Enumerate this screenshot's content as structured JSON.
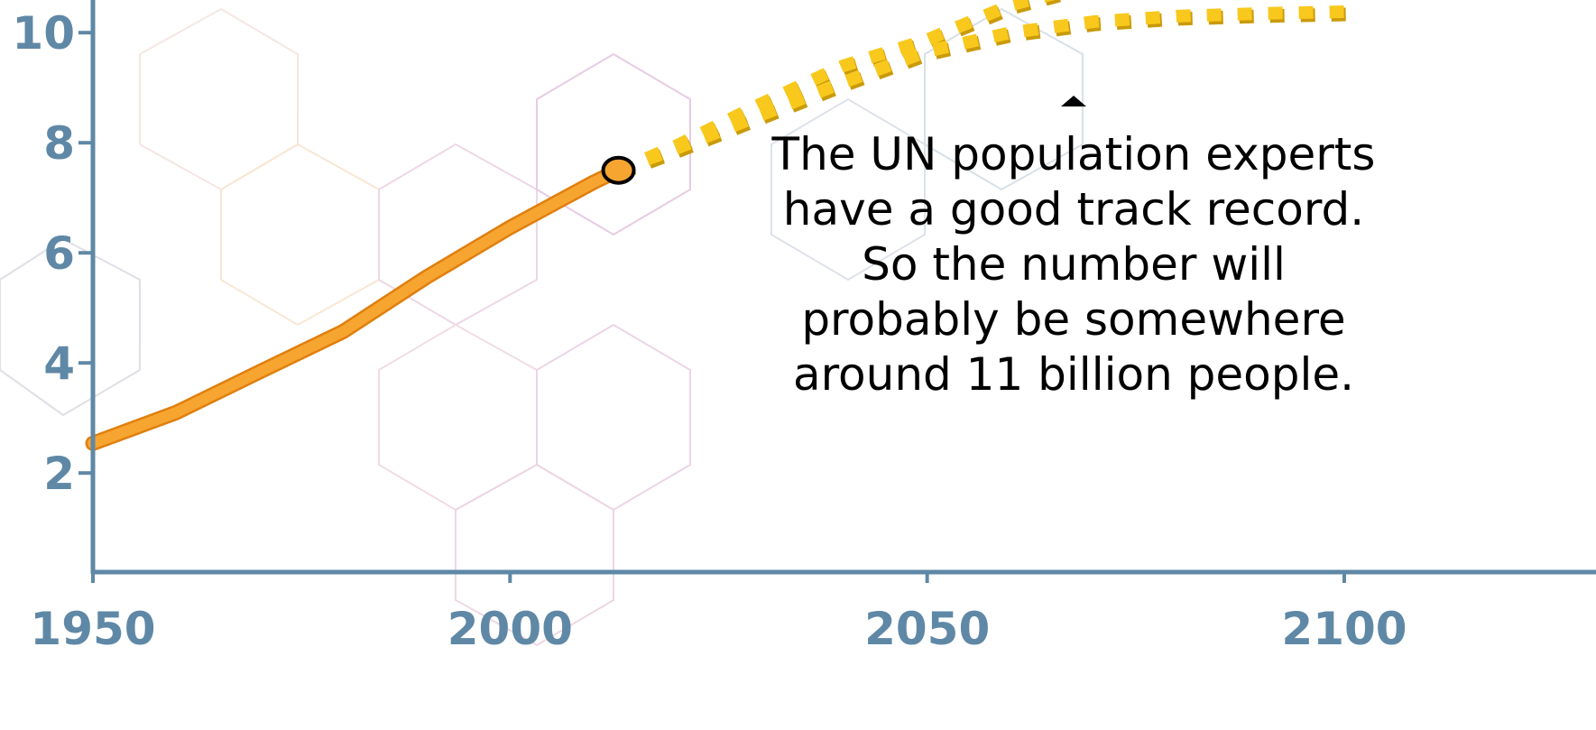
{
  "chart_data": {
    "type": "line",
    "xlim": [
      1950,
      2130
    ],
    "ylim": [
      0.2,
      10.5
    ],
    "xticks": [
      1950,
      2000,
      2050,
      2100
    ],
    "yticks": [
      2,
      4,
      6,
      8,
      10
    ],
    "series": [
      {
        "color": "#f7a531",
        "style": "solid",
        "x": [
          1950,
          1960,
          1970,
          1980,
          1990,
          2000,
          2010,
          2013
        ],
        "values": [
          2.54,
          3.1,
          3.84,
          4.57,
          5.56,
          6.46,
          7.28,
          7.5
        ]
      },
      {
        "color": "#f8c81c",
        "style": "dotted",
        "x": [
          2013,
          2020,
          2030,
          2040,
          2050,
          2060,
          2070,
          2080,
          2090,
          2100
        ],
        "values": [
          7.5,
          7.9,
          8.5,
          9.1,
          9.66,
          10.0,
          10.2,
          10.3,
          10.35,
          10.38
        ]
      },
      {
        "color": "#f8c81c",
        "style": "dotted",
        "x": [
          2013,
          2020,
          2030,
          2040,
          2050,
          2060,
          2070
        ],
        "values": [
          7.5,
          7.95,
          8.7,
          9.4,
          9.87,
          10.5,
          10.9
        ]
      }
    ],
    "annotation": [
      "The UN population experts",
      "have a good track record.",
      "So the number will",
      "probably be somewhere",
      "around 11 billion people."
    ]
  }
}
